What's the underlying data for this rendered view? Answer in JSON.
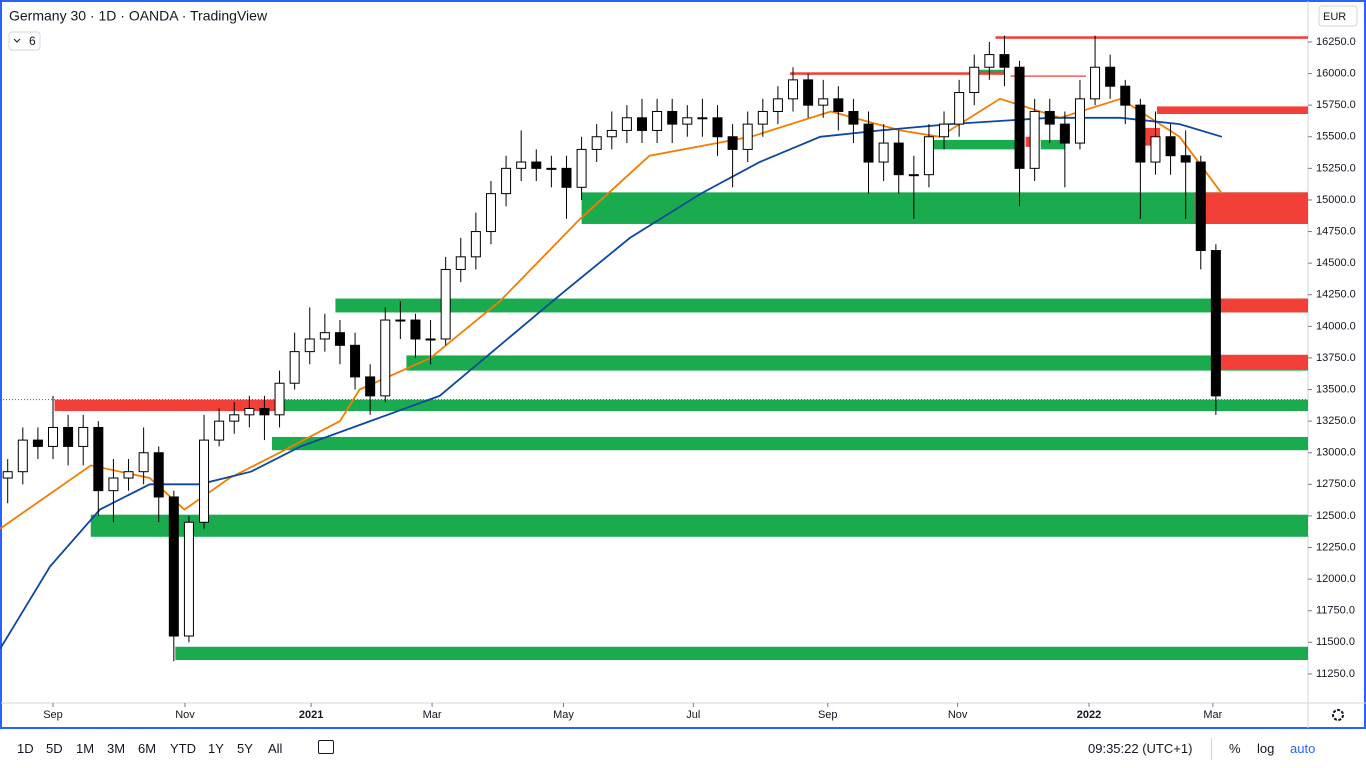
{
  "chart_data": {
    "type": "candlestick",
    "title": "Germany 30 · 1D · OANDA · TradingView",
    "indicator_count": "6",
    "currency": "EUR",
    "xlim": [
      -3.51,
      83.1
    ],
    "ylim": [
      11020,
      16582
    ],
    "xticks": [
      {
        "value": 0,
        "label": "Sep"
      },
      {
        "value": 8.74,
        "label": "Nov"
      },
      {
        "value": 17.09,
        "label": "2021"
      },
      {
        "value": 25.1,
        "label": "Mar"
      },
      {
        "value": 33.8,
        "label": "May"
      },
      {
        "value": 42.4,
        "label": "Jul"
      },
      {
        "value": 51.3,
        "label": "Sep"
      },
      {
        "value": 59.9,
        "label": "Nov"
      },
      {
        "value": 68.6,
        "label": "2022"
      },
      {
        "value": 76.8,
        "label": "Mar"
      }
    ],
    "yticks": [
      {
        "value": 11250,
        "label": "11250.0"
      },
      {
        "value": 11500,
        "label": "11500.0"
      },
      {
        "value": 11750,
        "label": "11750.0"
      },
      {
        "value": 12000,
        "label": "12000.0"
      },
      {
        "value": 12250,
        "label": "12250.0"
      },
      {
        "value": 12500,
        "label": "12500.0"
      },
      {
        "value": 12750,
        "label": "12750.0"
      },
      {
        "value": 13000,
        "label": "13000.0"
      },
      {
        "value": 13250,
        "label": "13250.0"
      },
      {
        "value": 13500,
        "label": "13500.0"
      },
      {
        "value": 13750,
        "label": "13750.0"
      },
      {
        "value": 14000,
        "label": "14000.0"
      },
      {
        "value": 14250,
        "label": "14250.0"
      },
      {
        "value": 14500,
        "label": "14500.0"
      },
      {
        "value": 14750,
        "label": "14750.0"
      },
      {
        "value": 15000,
        "label": "15000.0"
      },
      {
        "value": 15250,
        "label": "15250.0"
      },
      {
        "value": 15500,
        "label": "15500.0"
      },
      {
        "value": 15750,
        "label": "15750.0"
      },
      {
        "value": 16000,
        "label": "16000.0"
      },
      {
        "value": 16250,
        "label": "16250.0"
      }
    ],
    "grid": false,
    "up_color": "#ffffff",
    "down_color": "#000000",
    "price_line": 13420,
    "ohlc": {
      "x": [
        -3,
        -2,
        -1,
        0,
        1,
        2,
        3,
        4,
        5,
        6,
        7,
        8,
        9,
        10,
        11,
        12,
        13,
        14,
        15,
        16,
        17,
        18,
        19,
        20,
        21,
        22,
        23,
        24,
        25,
        26,
        27,
        28,
        29,
        30,
        31,
        32,
        33,
        34,
        35,
        36,
        37,
        38,
        39,
        40,
        41,
        42,
        43,
        44,
        45,
        46,
        47,
        48,
        49,
        50,
        51,
        52,
        53,
        54,
        55,
        56,
        57,
        58,
        59,
        60,
        61,
        62,
        63,
        64,
        65,
        66,
        67,
        68,
        69,
        70,
        71,
        72,
        73,
        74,
        75,
        76,
        77
      ],
      "open": [
        12800,
        12850,
        13100,
        13050,
        13200,
        13050,
        13200,
        12700,
        12800,
        12850,
        13000,
        12650,
        11550,
        12450,
        13100,
        13250,
        13300,
        13350,
        13300,
        13550,
        13800,
        13900,
        13950,
        13850,
        13600,
        13450,
        14050,
        14050,
        13900,
        13900,
        14450,
        14550,
        14750,
        15050,
        15250,
        15300,
        15250,
        15250,
        15100,
        15400,
        15500,
        15550,
        15650,
        15550,
        15700,
        15600,
        15650,
        15650,
        15500,
        15400,
        15600,
        15700,
        15800,
        15950,
        15750,
        15800,
        15700,
        15600,
        15300,
        15450,
        15200,
        15200,
        15500,
        15600,
        15850,
        16050,
        16150,
        16050,
        15250,
        15700,
        15600,
        15450,
        15800,
        16050,
        15900,
        15750,
        15300,
        15500,
        15350,
        15300,
        14600
      ],
      "high": [
        12950,
        13200,
        13200,
        13450,
        13300,
        13300,
        13250,
        12950,
        12950,
        13200,
        13050,
        12700,
        12500,
        13300,
        13350,
        13400,
        13450,
        13450,
        13650,
        13950,
        14150,
        14100,
        14050,
        13950,
        13700,
        14150,
        14200,
        14100,
        14050,
        14550,
        14700,
        14900,
        15150,
        15350,
        15550,
        15400,
        15350,
        15350,
        15500,
        15600,
        15700,
        15750,
        15800,
        15800,
        15800,
        15750,
        15800,
        15750,
        15600,
        15700,
        15800,
        15900,
        16050,
        16000,
        15950,
        15900,
        15800,
        15700,
        15600,
        15550,
        15350,
        15600,
        15700,
        15950,
        16150,
        16250,
        16300,
        16100,
        15800,
        15800,
        15700,
        15950,
        16300,
        16150,
        15950,
        15800,
        15700,
        15600,
        15550,
        15350,
        14650
      ],
      "low": [
        12600,
        12750,
        12950,
        12950,
        12900,
        12900,
        12500,
        12450,
        12700,
        12750,
        12450,
        11350,
        11500,
        12400,
        13050,
        13150,
        13200,
        13100,
        13200,
        13500,
        13700,
        13800,
        13700,
        13500,
        13300,
        13400,
        13900,
        13750,
        13700,
        13850,
        14350,
        14450,
        14650,
        14950,
        15150,
        15150,
        15100,
        14850,
        15000,
        15300,
        15400,
        15450,
        15450,
        15450,
        15450,
        15500,
        15500,
        15350,
        15100,
        15300,
        15500,
        15600,
        15700,
        15650,
        15650,
        15550,
        15450,
        15050,
        15150,
        15050,
        14850,
        15100,
        15400,
        15500,
        15750,
        15950,
        15900,
        14950,
        15150,
        15450,
        15100,
        15400,
        15750,
        15800,
        15600,
        14850,
        15200,
        15200,
        14850,
        14450,
        13300
      ],
      "close": [
        12850,
        13100,
        13050,
        13200,
        13050,
        13200,
        12700,
        12800,
        12850,
        13000,
        12650,
        11550,
        12450,
        13100,
        13250,
        13300,
        13350,
        13300,
        13550,
        13800,
        13900,
        13950,
        13850,
        13600,
        13450,
        14050,
        14050,
        13900,
        13900,
        14450,
        14550,
        14750,
        15050,
        15250,
        15300,
        15250,
        15250,
        15100,
        15400,
        15500,
        15550,
        15650,
        15550,
        15700,
        15600,
        15650,
        15650,
        15500,
        15400,
        15600,
        15700,
        15800,
        15950,
        15750,
        15800,
        15700,
        15600,
        15300,
        15450,
        15200,
        15200,
        15500,
        15600,
        15850,
        16050,
        16150,
        16050,
        15250,
        15700,
        15600,
        15450,
        15800,
        16050,
        15900,
        15750,
        15300,
        15500,
        15350,
        15300,
        14600,
        13450
      ]
    },
    "moving_averages": [
      {
        "color": "#f57c00",
        "x": [
          -3.5,
          2.5,
          6.4,
          8.7,
          11.7,
          15,
          19,
          20.3,
          25,
          29.6,
          34.9,
          39.5,
          46.2,
          51.5,
          56.1,
          58.7,
          62.7,
          66.7,
          70.7,
          74.6,
          77.4
        ],
        "values": [
          12400,
          12900,
          12800,
          12550,
          12800,
          13000,
          13250,
          13500,
          13750,
          14200,
          14850,
          15350,
          15500,
          15700,
          15550,
          15500,
          15800,
          15650,
          15800,
          15500,
          15050
        ]
      },
      {
        "color": "#0d47a1",
        "x": [
          -3.5,
          -0.2,
          3.1,
          6.4,
          9.7,
          13.1,
          16.4,
          21,
          25.6,
          29.6,
          33.6,
          38.2,
          42.9,
          46.8,
          50.8,
          54.8,
          59.4,
          66,
          70.7,
          74.6,
          77.4
        ],
        "values": [
          11450,
          12100,
          12550,
          12750,
          12750,
          12850,
          13050,
          13250,
          13450,
          13850,
          14250,
          14700,
          15050,
          15300,
          15500,
          15550,
          15600,
          15650,
          15650,
          15600,
          15500
        ]
      }
    ],
    "zones": [
      {
        "color": "#1aab4f",
        "x": [
          35,
          83.1
        ],
        "y": [
          14810,
          15060
        ]
      },
      {
        "color": "#1aab4f",
        "x": [
          18.7,
          83.1
        ],
        "y": [
          14110,
          14220
        ]
      },
      {
        "color": "#1aab4f",
        "x": [
          23.4,
          83.1
        ],
        "y": [
          13650,
          13770
        ]
      },
      {
        "color": "#1aab4f",
        "x": [
          15.2,
          83.1
        ],
        "y": [
          13330,
          13420
        ]
      },
      {
        "color": "#1aab4f",
        "x": [
          14.5,
          83.1
        ],
        "y": [
          13020,
          13125
        ]
      },
      {
        "color": "#1aab4f",
        "x": [
          2.5,
          83.1
        ],
        "y": [
          12335,
          12510
        ]
      },
      {
        "color": "#1aab4f",
        "x": [
          8.1,
          83.1
        ],
        "y": [
          11360,
          11465
        ]
      },
      {
        "color": "#1aab4f",
        "x": [
          58,
          63.8
        ],
        "y": [
          15400,
          15475
        ]
      },
      {
        "color": "#1aab4f",
        "x": [
          65.4,
          67
        ],
        "y": [
          15400,
          15475
        ]
      },
      {
        "color": "#1aab4f",
        "x": [
          61,
          63
        ],
        "y": [
          16000,
          16030
        ]
      },
      {
        "color": "#f23f37",
        "x": [
          0.1,
          14.8
        ],
        "y": [
          13330,
          13420
        ]
      },
      {
        "color": "#f23f37",
        "x": [
          75.6,
          83.1
        ],
        "y": [
          14810,
          15060
        ]
      },
      {
        "color": "#f23f37",
        "x": [
          76.8,
          83.1
        ],
        "y": [
          14110,
          14220
        ]
      },
      {
        "color": "#f23f37",
        "x": [
          77.3,
          83.1
        ],
        "y": [
          13655,
          13775
        ]
      },
      {
        "color": "#f23f37",
        "x": [
          73.1,
          83.1
        ],
        "y": [
          15680,
          15740
        ]
      },
      {
        "color": "#f23f37",
        "x": [
          72,
          73.3
        ],
        "y": [
          15430,
          15570
        ]
      },
      {
        "color": "#f23f37",
        "x": [
          64.4,
          65.2
        ],
        "y": [
          15420,
          15500
        ]
      },
      {
        "color": "#f23f37",
        "x": [
          62.4,
          83.1
        ],
        "y": [
          16275,
          16295
        ]
      },
      {
        "color": "#f23f37",
        "x": [
          48.8,
          63
        ],
        "y": [
          15990,
          16010
        ]
      },
      {
        "color": "#f23f37",
        "x": [
          63.4,
          68.4
        ],
        "y": [
          15975,
          15985
        ]
      }
    ]
  },
  "toolbar": {
    "ranges": [
      "1D",
      "5D",
      "1M",
      "3M",
      "6M",
      "YTD",
      "1Y",
      "5Y",
      "All"
    ],
    "clock": "09:35:22 (UTC+1)",
    "options": [
      "%",
      "log",
      "auto"
    ]
  }
}
